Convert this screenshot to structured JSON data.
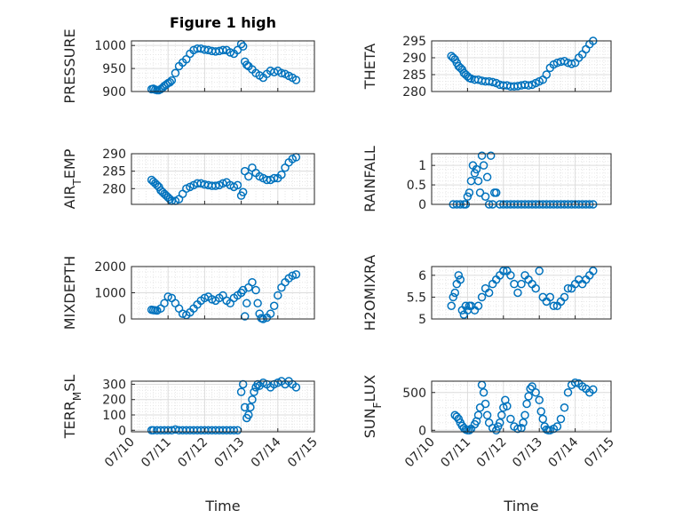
{
  "figure_title": "Figure 1 high",
  "chart_data": [
    {
      "type": "scatter",
      "ylabel_main": "PRESSURE",
      "ylabel_sub": "",
      "ylim": [
        900,
        1010
      ],
      "yticks": [
        900,
        950,
        1000
      ],
      "grid": true,
      "x": [
        0.55,
        0.6,
        0.65,
        0.7,
        0.75,
        0.8,
        0.85,
        0.9,
        0.95,
        1.0,
        1.05,
        1.1,
        1.2,
        1.3,
        1.4,
        1.5,
        1.6,
        1.7,
        1.8,
        1.9,
        2.0,
        2.1,
        2.2,
        2.3,
        2.4,
        2.5,
        2.6,
        2.7,
        2.8,
        2.9,
        3.0,
        3.05,
        3.1,
        3.15,
        3.2,
        3.3,
        3.4,
        3.5,
        3.6,
        3.7,
        3.8,
        3.9,
        4.0,
        4.1,
        4.2,
        4.3,
        4.4,
        4.5
      ],
      "y": [
        905,
        906,
        904,
        903,
        903,
        905,
        908,
        912,
        915,
        918,
        920,
        924,
        940,
        955,
        963,
        970,
        982,
        990,
        993,
        993,
        991,
        990,
        988,
        987,
        988,
        990,
        990,
        985,
        982,
        990,
        1003,
        998,
        965,
        958,
        955,
        948,
        940,
        935,
        930,
        938,
        945,
        942,
        945,
        940,
        938,
        934,
        930,
        925
      ]
    },
    {
      "type": "scatter",
      "ylabel_main": "THETA",
      "ylabel_sub": "",
      "ylim": [
        280,
        295
      ],
      "yticks": [
        280,
        285,
        290,
        295
      ],
      "grid": true,
      "x": [
        0.55,
        0.6,
        0.65,
        0.7,
        0.75,
        0.8,
        0.85,
        0.9,
        0.95,
        1.0,
        1.05,
        1.1,
        1.2,
        1.3,
        1.4,
        1.5,
        1.6,
        1.7,
        1.8,
        1.9,
        2.0,
        2.1,
        2.2,
        2.3,
        2.4,
        2.5,
        2.6,
        2.7,
        2.8,
        2.9,
        3.0,
        3.1,
        3.2,
        3.3,
        3.4,
        3.5,
        3.6,
        3.7,
        3.8,
        3.9,
        4.0,
        4.1,
        4.2,
        4.3,
        4.4,
        4.5
      ],
      "y": [
        290.5,
        290,
        289.5,
        288.5,
        287.5,
        287,
        286.5,
        285.5,
        285,
        284.5,
        284,
        283.8,
        283.5,
        283.5,
        283.2,
        283,
        283,
        282.8,
        282.5,
        282,
        281.8,
        281.8,
        281.5,
        281.5,
        281.6,
        281.8,
        282,
        281.8,
        282,
        282.5,
        283,
        283.5,
        285,
        287,
        288,
        288.5,
        288.8,
        289,
        288.5,
        288.2,
        288.5,
        290,
        291,
        292.5,
        294,
        295
      ]
    },
    {
      "type": "scatter",
      "ylabel_main": "AIR",
      "ylabel_sub": "T",
      "ylabel_after": "EMP",
      "ylim": [
        275.5,
        290
      ],
      "yticks": [
        280,
        285,
        290
      ],
      "grid": true,
      "x": [
        0.55,
        0.6,
        0.65,
        0.7,
        0.75,
        0.8,
        0.85,
        0.9,
        0.95,
        1.0,
        1.05,
        1.1,
        1.2,
        1.3,
        1.4,
        1.5,
        1.6,
        1.7,
        1.8,
        1.9,
        2.0,
        2.1,
        2.2,
        2.3,
        2.4,
        2.5,
        2.6,
        2.7,
        2.8,
        2.9,
        3.0,
        3.05,
        3.1,
        3.2,
        3.3,
        3.4,
        3.5,
        3.6,
        3.7,
        3.8,
        3.9,
        4.0,
        4.1,
        4.2,
        4.3,
        4.4,
        4.5
      ],
      "y": [
        282.5,
        282,
        281.5,
        281,
        280.5,
        279.5,
        279,
        278.5,
        278,
        277.5,
        277,
        276.5,
        276.5,
        277,
        278.5,
        280,
        280.5,
        281,
        281.5,
        281.5,
        281.2,
        281,
        280.8,
        280.8,
        281,
        281.5,
        281.8,
        281,
        280.5,
        281,
        278,
        279,
        285,
        283.5,
        286,
        284.5,
        283.5,
        283,
        282.5,
        282.5,
        283,
        283,
        284,
        286,
        287.5,
        288.5,
        289
      ]
    },
    {
      "type": "scatter",
      "ylabel_main": "RAINFALL",
      "ylabel_sub": "",
      "ylim": [
        0,
        1.3
      ],
      "yticks": [
        0,
        0.5,
        1
      ],
      "grid": true,
      "x": [
        0.6,
        0.7,
        0.8,
        0.9,
        0.95,
        1.0,
        1.05,
        1.1,
        1.15,
        1.2,
        1.25,
        1.3,
        1.35,
        1.4,
        1.45,
        1.5,
        1.55,
        1.6,
        1.65,
        1.7,
        1.75,
        1.8,
        1.9,
        2.0,
        2.1,
        2.2,
        2.3,
        2.4,
        2.5,
        2.6,
        2.7,
        2.8,
        2.9,
        3.0,
        3.1,
        3.2,
        3.3,
        3.4,
        3.5,
        3.6,
        3.7,
        3.8,
        3.9,
        4.0,
        4.1,
        4.2,
        4.3,
        4.4,
        4.5
      ],
      "y": [
        0,
        0,
        0,
        0,
        0,
        0.2,
        0.3,
        0.6,
        1.0,
        0.8,
        0.9,
        0.6,
        0.3,
        1.25,
        1.0,
        0.2,
        0.7,
        0,
        1.25,
        0,
        0.3,
        0.3,
        0,
        0,
        0,
        0,
        0,
        0,
        0,
        0,
        0,
        0,
        0,
        0,
        0,
        0,
        0,
        0,
        0,
        0,
        0,
        0,
        0,
        0,
        0,
        0,
        0,
        0,
        0
      ]
    },
    {
      "type": "scatter",
      "ylabel_main": "MIXDEPTH",
      "ylabel_sub": "",
      "ylim": [
        0,
        2000
      ],
      "yticks": [
        0,
        1000,
        2000
      ],
      "grid": true,
      "x": [
        0.55,
        0.6,
        0.65,
        0.7,
        0.8,
        0.9,
        1.0,
        1.1,
        1.2,
        1.3,
        1.4,
        1.5,
        1.6,
        1.7,
        1.8,
        1.9,
        2.0,
        2.1,
        2.2,
        2.3,
        2.4,
        2.5,
        2.6,
        2.7,
        2.8,
        2.9,
        3.0,
        3.05,
        3.1,
        3.15,
        3.2,
        3.3,
        3.4,
        3.45,
        3.5,
        3.55,
        3.6,
        3.7,
        3.8,
        3.9,
        4.0,
        4.1,
        4.2,
        4.3,
        4.4,
        4.5
      ],
      "y": [
        350,
        340,
        330,
        320,
        400,
        600,
        850,
        800,
        600,
        400,
        200,
        150,
        250,
        400,
        550,
        700,
        800,
        850,
        750,
        700,
        800,
        900,
        700,
        600,
        800,
        900,
        1000,
        1100,
        100,
        600,
        1200,
        1400,
        1100,
        600,
        200,
        30,
        0,
        50,
        200,
        500,
        900,
        1200,
        1400,
        1550,
        1650,
        1700
      ]
    },
    {
      "type": "scatter",
      "ylabel_main": "H2OMIXRA",
      "ylabel_sub": "",
      "ylim": [
        5,
        6.2
      ],
      "yticks": [
        5,
        5.5,
        6
      ],
      "grid": true,
      "x": [
        0.55,
        0.6,
        0.65,
        0.7,
        0.75,
        0.8,
        0.85,
        0.9,
        0.95,
        1.0,
        1.05,
        1.1,
        1.2,
        1.3,
        1.4,
        1.5,
        1.6,
        1.7,
        1.8,
        1.9,
        2.0,
        2.1,
        2.2,
        2.3,
        2.4,
        2.5,
        2.6,
        2.7,
        2.8,
        2.9,
        3.0,
        3.1,
        3.2,
        3.3,
        3.4,
        3.5,
        3.6,
        3.7,
        3.8,
        3.9,
        4.0,
        4.1,
        4.2,
        4.3,
        4.4,
        4.5
      ],
      "y": [
        5.3,
        5.5,
        5.6,
        5.8,
        6.0,
        5.9,
        5.2,
        5.1,
        5.3,
        5.2,
        5.3,
        5.3,
        5.2,
        5.3,
        5.5,
        5.7,
        5.6,
        5.8,
        5.9,
        6.0,
        6.1,
        6.1,
        6.0,
        5.8,
        5.6,
        5.8,
        6.0,
        5.9,
        5.8,
        5.7,
        6.1,
        5.5,
        5.4,
        5.5,
        5.3,
        5.3,
        5.4,
        5.5,
        5.7,
        5.7,
        5.8,
        5.9,
        5.8,
        5.9,
        6.0,
        6.1
      ]
    },
    {
      "type": "scatter",
      "ylabel_main": "TERR",
      "ylabel_sub": "M",
      "ylabel_after": "SL",
      "ylim": [
        -10,
        320
      ],
      "yticks": [
        0,
        100,
        200,
        300
      ],
      "grid": true,
      "x": [
        0.55,
        0.6,
        0.7,
        0.8,
        0.9,
        1.0,
        1.1,
        1.2,
        1.3,
        1.4,
        1.5,
        1.6,
        1.7,
        1.8,
        1.9,
        2.0,
        2.1,
        2.2,
        2.3,
        2.4,
        2.5,
        2.6,
        2.7,
        2.8,
        2.9,
        3.0,
        3.05,
        3.1,
        3.15,
        3.2,
        3.25,
        3.3,
        3.35,
        3.4,
        3.45,
        3.5,
        3.6,
        3.7,
        3.8,
        3.9,
        4.0,
        4.1,
        4.2,
        4.3,
        4.4,
        4.5
      ],
      "y": [
        0,
        0,
        0,
        0,
        0,
        0,
        0,
        5,
        0,
        0,
        0,
        0,
        0,
        0,
        0,
        0,
        0,
        0,
        0,
        0,
        0,
        0,
        0,
        0,
        0,
        250,
        300,
        150,
        80,
        100,
        150,
        200,
        250,
        280,
        300,
        290,
        310,
        300,
        280,
        300,
        310,
        320,
        300,
        320,
        300,
        280
      ]
    },
    {
      "type": "scatter",
      "ylabel_main": "SUN",
      "ylabel_sub": "F",
      "ylabel_after": "LUX",
      "ylim": [
        -20,
        650
      ],
      "yticks": [
        0,
        500
      ],
      "grid": true,
      "x": [
        0.65,
        0.7,
        0.75,
        0.8,
        0.85,
        0.9,
        0.95,
        1.0,
        1.05,
        1.1,
        1.2,
        1.25,
        1.3,
        1.35,
        1.4,
        1.45,
        1.5,
        1.55,
        1.6,
        1.7,
        1.8,
        1.85,
        1.9,
        1.95,
        2.0,
        2.05,
        2.1,
        2.2,
        2.3,
        2.4,
        2.5,
        2.55,
        2.6,
        2.65,
        2.7,
        2.75,
        2.8,
        2.9,
        3.0,
        3.05,
        3.1,
        3.15,
        3.2,
        3.25,
        3.3,
        3.4,
        3.5,
        3.6,
        3.7,
        3.8,
        3.9,
        4.0,
        4.1,
        4.2,
        4.3,
        4.4,
        4.5
      ],
      "y": [
        200,
        180,
        150,
        100,
        60,
        30,
        10,
        0,
        0,
        20,
        80,
        120,
        200,
        300,
        600,
        500,
        350,
        200,
        100,
        30,
        0,
        50,
        100,
        200,
        300,
        400,
        320,
        150,
        50,
        20,
        30,
        100,
        200,
        350,
        450,
        550,
        580,
        500,
        400,
        250,
        150,
        50,
        10,
        0,
        0,
        20,
        50,
        150,
        300,
        500,
        600,
        630,
        620,
        580,
        550,
        500,
        540
      ]
    }
  ],
  "x_ticks": [
    "07/10",
    "07/11",
    "07/12",
    "07/13",
    "07/14",
    "07/15"
  ],
  "xlabel": "Time",
  "colors": {
    "marker": "#0072BD",
    "axis": "#262626",
    "grid": "#d9d9d9"
  }
}
